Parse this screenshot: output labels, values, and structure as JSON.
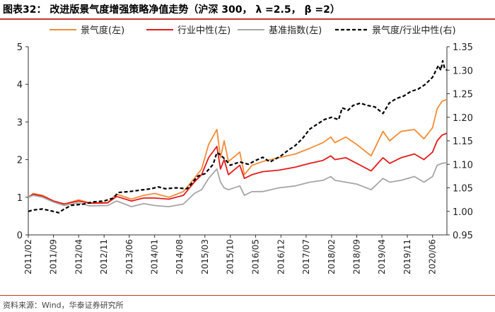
{
  "header": {
    "title": "图表32：  改进版景气度增强策略净值走势（沪深 300，  λ =2.5，  β =2）"
  },
  "footer": {
    "source": "资料来源：Wind，华泰证券研究所"
  },
  "chart_data": {
    "type": "line",
    "grid": false,
    "legend_position": "top",
    "x_tick_labels": [
      "2011/02",
      "2011/09",
      "2012/04",
      "2012/11",
      "2013/06",
      "2014/01",
      "2014/08",
      "2015/03",
      "2015/10",
      "2016/05",
      "2016/12",
      "2017/07",
      "2018/02",
      "2018/09",
      "2019/04",
      "2019/11",
      "2020/06"
    ],
    "x_start": "2011-02-01",
    "x_end": "2020-09-30",
    "y_left": {
      "ticks": [
        "0",
        "1",
        "2",
        "3",
        "4",
        "5"
      ],
      "range": [
        0,
        5
      ]
    },
    "y_right": {
      "ticks": [
        "0.95",
        "1.00",
        "1.05",
        "1.10",
        "1.15",
        "1.20",
        "1.25",
        "1.30",
        "1.35"
      ],
      "range": [
        0.95,
        1.35
      ]
    },
    "series": [
      {
        "name": "景气度(左)",
        "axis": "left",
        "color": "#f28c38",
        "dash": "solid",
        "points": [
          [
            "2011-02-01",
            1.0
          ],
          [
            "2011-03-15",
            1.1
          ],
          [
            "2011-06-01",
            1.05
          ],
          [
            "2011-09-01",
            0.9
          ],
          [
            "2011-12-01",
            0.82
          ],
          [
            "2012-04-01",
            0.93
          ],
          [
            "2012-07-01",
            0.85
          ],
          [
            "2012-12-01",
            0.86
          ],
          [
            "2013-02-15",
            1.08
          ],
          [
            "2013-06-20",
            0.95
          ],
          [
            "2013-10-01",
            1.05
          ],
          [
            "2014-01-01",
            1.1
          ],
          [
            "2014-05-01",
            1.0
          ],
          [
            "2014-09-01",
            1.15
          ],
          [
            "2014-12-01",
            1.5
          ],
          [
            "2015-02-01",
            1.75
          ],
          [
            "2015-04-01",
            2.4
          ],
          [
            "2015-06-10",
            2.8
          ],
          [
            "2015-07-10",
            2.05
          ],
          [
            "2015-08-10",
            2.5
          ],
          [
            "2015-09-15",
            1.95
          ],
          [
            "2015-12-20",
            2.2
          ],
          [
            "2016-01-28",
            1.6
          ],
          [
            "2016-04-01",
            1.85
          ],
          [
            "2016-07-01",
            1.95
          ],
          [
            "2016-11-15",
            2.05
          ],
          [
            "2017-04-01",
            2.15
          ],
          [
            "2017-08-01",
            2.3
          ],
          [
            "2017-11-20",
            2.45
          ],
          [
            "2018-01-25",
            2.6
          ],
          [
            "2018-03-01",
            2.45
          ],
          [
            "2018-06-01",
            2.6
          ],
          [
            "2018-09-01",
            2.4
          ],
          [
            "2018-12-31",
            2.1
          ],
          [
            "2019-04-10",
            2.75
          ],
          [
            "2019-06-05",
            2.5
          ],
          [
            "2019-09-10",
            2.75
          ],
          [
            "2019-12-31",
            2.8
          ],
          [
            "2020-03-20",
            2.55
          ],
          [
            "2020-06-01",
            2.85
          ],
          [
            "2020-07-10",
            3.35
          ],
          [
            "2020-08-20",
            3.55
          ],
          [
            "2020-09-30",
            3.6
          ]
        ]
      },
      {
        "name": "行业中性(左)",
        "axis": "left",
        "color": "#e41a1c",
        "dash": "solid",
        "points": [
          [
            "2011-02-01",
            1.0
          ],
          [
            "2011-03-15",
            1.08
          ],
          [
            "2011-06-01",
            1.03
          ],
          [
            "2011-09-01",
            0.9
          ],
          [
            "2011-12-01",
            0.82
          ],
          [
            "2012-04-01",
            0.9
          ],
          [
            "2012-07-01",
            0.84
          ],
          [
            "2012-12-01",
            0.85
          ],
          [
            "2013-02-15",
            1.02
          ],
          [
            "2013-06-20",
            0.9
          ],
          [
            "2013-10-01",
            0.98
          ],
          [
            "2014-01-01",
            0.98
          ],
          [
            "2014-05-01",
            0.95
          ],
          [
            "2014-09-01",
            1.05
          ],
          [
            "2014-12-01",
            1.4
          ],
          [
            "2015-02-01",
            1.6
          ],
          [
            "2015-04-01",
            2.05
          ],
          [
            "2015-06-10",
            2.35
          ],
          [
            "2015-07-10",
            1.75
          ],
          [
            "2015-08-10",
            2.0
          ],
          [
            "2015-09-15",
            1.6
          ],
          [
            "2015-12-20",
            1.85
          ],
          [
            "2016-01-28",
            1.5
          ],
          [
            "2016-04-01",
            1.6
          ],
          [
            "2016-07-01",
            1.68
          ],
          [
            "2016-11-15",
            1.72
          ],
          [
            "2017-04-01",
            1.8
          ],
          [
            "2017-08-01",
            1.9
          ],
          [
            "2017-11-20",
            1.98
          ],
          [
            "2018-01-25",
            2.1
          ],
          [
            "2018-03-01",
            2.0
          ],
          [
            "2018-06-01",
            2.05
          ],
          [
            "2018-09-01",
            1.9
          ],
          [
            "2018-12-31",
            1.7
          ],
          [
            "2019-04-10",
            2.05
          ],
          [
            "2019-06-05",
            1.9
          ],
          [
            "2019-09-10",
            2.05
          ],
          [
            "2019-12-31",
            2.15
          ],
          [
            "2020-03-20",
            2.0
          ],
          [
            "2020-06-01",
            2.2
          ],
          [
            "2020-07-10",
            2.5
          ],
          [
            "2020-08-20",
            2.65
          ],
          [
            "2020-09-30",
            2.7
          ]
        ]
      },
      {
        "name": "基准指数(左)",
        "axis": "left",
        "color": "#a6a6a6",
        "dash": "solid",
        "points": [
          [
            "2011-02-01",
            1.0
          ],
          [
            "2011-03-15",
            1.05
          ],
          [
            "2011-06-01",
            1.0
          ],
          [
            "2011-09-01",
            0.87
          ],
          [
            "2011-12-01",
            0.78
          ],
          [
            "2012-04-01",
            0.85
          ],
          [
            "2012-07-01",
            0.77
          ],
          [
            "2012-12-01",
            0.78
          ],
          [
            "2013-02-15",
            0.9
          ],
          [
            "2013-06-20",
            0.75
          ],
          [
            "2013-10-01",
            0.83
          ],
          [
            "2014-01-01",
            0.78
          ],
          [
            "2014-05-01",
            0.75
          ],
          [
            "2014-09-01",
            0.82
          ],
          [
            "2014-12-01",
            1.1
          ],
          [
            "2015-02-01",
            1.2
          ],
          [
            "2015-04-01",
            1.5
          ],
          [
            "2015-06-10",
            1.75
          ],
          [
            "2015-07-10",
            1.4
          ],
          [
            "2015-08-10",
            1.25
          ],
          [
            "2015-09-15",
            1.2
          ],
          [
            "2015-12-20",
            1.3
          ],
          [
            "2016-01-28",
            1.05
          ],
          [
            "2016-04-01",
            1.15
          ],
          [
            "2016-07-01",
            1.15
          ],
          [
            "2016-11-15",
            1.25
          ],
          [
            "2017-04-01",
            1.3
          ],
          [
            "2017-08-01",
            1.4
          ],
          [
            "2017-11-20",
            1.45
          ],
          [
            "2018-01-25",
            1.55
          ],
          [
            "2018-03-01",
            1.45
          ],
          [
            "2018-06-01",
            1.4
          ],
          [
            "2018-09-01",
            1.35
          ],
          [
            "2018-12-31",
            1.2
          ],
          [
            "2019-04-10",
            1.5
          ],
          [
            "2019-06-05",
            1.4
          ],
          [
            "2019-09-10",
            1.45
          ],
          [
            "2019-12-31",
            1.55
          ],
          [
            "2020-03-20",
            1.4
          ],
          [
            "2020-06-01",
            1.55
          ],
          [
            "2020-07-10",
            1.85
          ],
          [
            "2020-08-20",
            1.9
          ],
          [
            "2020-09-30",
            1.92
          ]
        ]
      },
      {
        "name": "景气度/行业中性(右)",
        "axis": "right",
        "color": "#000000",
        "dash": "dashed",
        "points": [
          [
            "2011-02-01",
            1.0
          ],
          [
            "2011-03-15",
            1.003
          ],
          [
            "2011-06-01",
            1.005
          ],
          [
            "2011-09-01",
            1.0
          ],
          [
            "2011-10-15",
            0.997
          ],
          [
            "2011-12-01",
            1.005
          ],
          [
            "2012-02-01",
            1.013
          ],
          [
            "2012-05-01",
            1.015
          ],
          [
            "2012-08-01",
            1.02
          ],
          [
            "2012-11-01",
            1.022
          ],
          [
            "2013-01-15",
            1.028
          ],
          [
            "2013-03-01",
            1.04
          ],
          [
            "2013-06-01",
            1.042
          ],
          [
            "2013-09-01",
            1.045
          ],
          [
            "2013-12-01",
            1.048
          ],
          [
            "2014-02-01",
            1.052
          ],
          [
            "2014-04-01",
            1.048
          ],
          [
            "2014-07-01",
            1.05
          ],
          [
            "2014-10-01",
            1.048
          ],
          [
            "2015-01-01",
            1.075
          ],
          [
            "2015-03-01",
            1.08
          ],
          [
            "2015-05-10",
            1.1
          ],
          [
            "2015-06-10",
            1.125
          ],
          [
            "2015-07-10",
            1.12
          ],
          [
            "2015-08-20",
            1.11
          ],
          [
            "2015-10-01",
            1.098
          ],
          [
            "2015-12-20",
            1.105
          ],
          [
            "2016-03-01",
            1.1
          ],
          [
            "2016-05-01",
            1.108
          ],
          [
            "2016-07-01",
            1.115
          ],
          [
            "2016-09-01",
            1.105
          ],
          [
            "2016-12-01",
            1.118
          ],
          [
            "2017-02-01",
            1.13
          ],
          [
            "2017-04-01",
            1.14
          ],
          [
            "2017-06-01",
            1.155
          ],
          [
            "2017-08-01",
            1.175
          ],
          [
            "2017-10-01",
            1.185
          ],
          [
            "2017-12-01",
            1.195
          ],
          [
            "2018-02-01",
            1.2
          ],
          [
            "2018-04-01",
            1.195
          ],
          [
            "2018-05-01",
            1.22
          ],
          [
            "2018-06-20",
            1.215
          ],
          [
            "2018-08-01",
            1.225
          ],
          [
            "2018-10-01",
            1.23
          ],
          [
            "2018-12-01",
            1.225
          ],
          [
            "2019-02-01",
            1.222
          ],
          [
            "2019-04-10",
            1.208
          ],
          [
            "2019-06-01",
            1.23
          ],
          [
            "2019-08-01",
            1.24
          ],
          [
            "2019-10-01",
            1.245
          ],
          [
            "2019-12-01",
            1.255
          ],
          [
            "2020-02-01",
            1.26
          ],
          [
            "2020-04-01",
            1.27
          ],
          [
            "2020-06-01",
            1.285
          ],
          [
            "2020-07-20",
            1.31
          ],
          [
            "2020-08-10",
            1.3
          ],
          [
            "2020-08-25",
            1.32
          ],
          [
            "2020-09-10",
            1.305
          ],
          [
            "2020-09-30",
            1.3
          ]
        ]
      }
    ]
  }
}
